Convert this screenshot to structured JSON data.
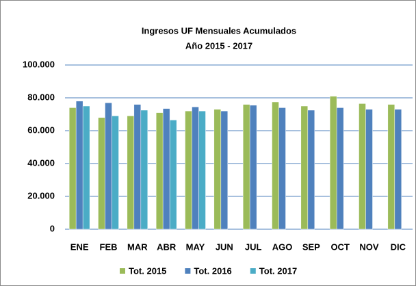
{
  "chart_data": {
    "type": "bar",
    "title": "Ingresos UF Mensuales Acumulados",
    "subtitle": "Año 2015 - 2017",
    "categories": [
      "ENE",
      "FEB",
      "MAR",
      "ABR",
      "MAY",
      "JUN",
      "JUL",
      "AGO",
      "SEP",
      "OCT",
      "NOV",
      "DIC"
    ],
    "series": [
      {
        "name": "Tot. 2015",
        "color": "#9bbb59",
        "values": [
          74000,
          68000,
          69000,
          71000,
          72000,
          73000,
          76000,
          77500,
          75000,
          81000,
          76500,
          76000
        ]
      },
      {
        "name": "Tot. 2016",
        "color": "#4f81bd",
        "values": [
          78000,
          77000,
          76000,
          73500,
          74500,
          72000,
          75500,
          74000,
          72500,
          74000,
          73000,
          73000
        ]
      },
      {
        "name": "Tot. 2017",
        "color": "#4bacc6",
        "values": [
          75000,
          69000,
          72500,
          66500,
          72000,
          null,
          null,
          null,
          null,
          null,
          null,
          null
        ]
      }
    ],
    "ylim": [
      0,
      100000
    ],
    "yticks": [
      0,
      {
        "value": 20000,
        "label": "20.000"
      },
      {
        "value": 40000,
        "label": "40.000"
      },
      {
        "value": 60000,
        "label": "60.000"
      },
      {
        "value": 80000,
        "label": "80.000"
      },
      {
        "value": 100000,
        "label": "100.000"
      }
    ],
    "grid": true,
    "legend": "bottom"
  }
}
